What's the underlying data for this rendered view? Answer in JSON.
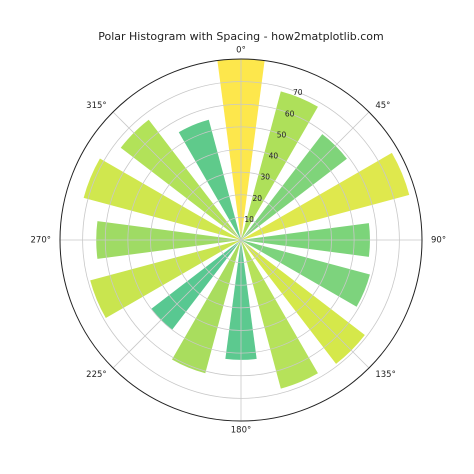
{
  "chart_data": {
    "type": "bar",
    "projection": "polar",
    "title": "Polar Histogram with Spacing - how2matplotlib.com",
    "theta_zero_location": "top",
    "theta_direction": "clockwise",
    "angle_ticks": [
      "0°",
      "45°",
      "90°",
      "135°",
      "180°",
      "225°",
      "270°",
      "315°"
    ],
    "radial_ticks": [
      10,
      20,
      30,
      40,
      50,
      60,
      70
    ],
    "radial_tick_labels": [
      "10",
      "20",
      "30",
      "40",
      "50",
      "60",
      "70"
    ],
    "rmax": 80,
    "grid": true,
    "bar_width_deg": 15,
    "centers_deg": [
      0,
      22.5,
      45,
      67.5,
      90,
      112.5,
      135,
      157.5,
      180,
      202.5,
      225,
      247.5,
      270,
      292.5,
      315,
      337.5
    ],
    "values": [
      80,
      68,
      59,
      77,
      57,
      59,
      69,
      68,
      53,
      61,
      50,
      69,
      64,
      72,
      67,
      55
    ],
    "colors": [
      "#fde74c",
      "#aee05a",
      "#7fd47a",
      "#dfe84d",
      "#7cd47a",
      "#7dd37d",
      "#d5e84a",
      "#b6e25a",
      "#5cc98f",
      "#a9dd5e",
      "#58c891",
      "#c9e54f",
      "#9fdb64",
      "#d0e74e",
      "#b2e259",
      "#5fca8b"
    ]
  }
}
